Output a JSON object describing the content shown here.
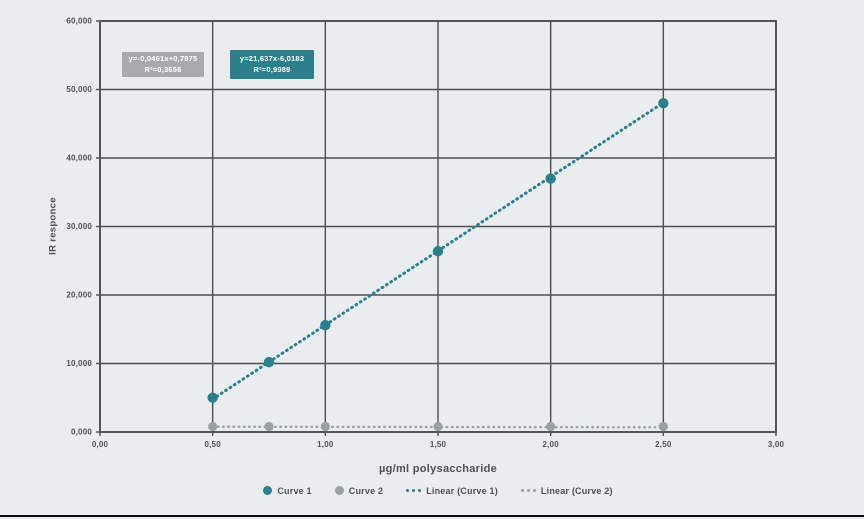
{
  "colors": {
    "background": "#e9edf0",
    "grid": "#4b4f51",
    "text": "#4e5254",
    "teal": "#2e7f8c",
    "gray": "#9aa0a3",
    "bottom_rule": "#0c0c0c"
  },
  "chart_data": {
    "type": "scatter",
    "title": "",
    "xlabel": "µg/ml polysaccharide",
    "ylabel": "IR responce",
    "xlim": [
      0,
      3
    ],
    "ylim": [
      0,
      60000
    ],
    "grid": true,
    "legend_position": "bottom",
    "x_ticks": [
      "0,00",
      "0,50",
      "1,00",
      "1,50",
      "2,00",
      "2,50",
      "3,00"
    ],
    "y_ticks": [
      "0,000",
      "10,000",
      "20,000",
      "30,000",
      "40,000",
      "50,000",
      "60,000"
    ],
    "series": [
      {
        "name": "Curve 1",
        "color": "#2e7f8c",
        "marker": "circle",
        "x": [
          0.5,
          0.75,
          1.0,
          1.5,
          2.0,
          2.5
        ],
        "y": [
          5000,
          10200,
          15600,
          26400,
          37000,
          48000
        ]
      },
      {
        "name": "Curve 2",
        "color": "#9aa0a3",
        "marker": "circle",
        "x": [
          0.5,
          0.75,
          1.0,
          1.5,
          2.0,
          2.5
        ],
        "y": [
          800,
          800,
          800,
          800,
          800,
          800
        ]
      }
    ],
    "trendlines": [
      {
        "name": "Linear (Curve 1)",
        "color": "#2e7f8c",
        "box_bg": "#2e7f8c",
        "style": "dotted",
        "equation": "y=21,637x-6,0183",
        "r2": "R²=0,9989",
        "x_start": 0.5,
        "y_start": 4800,
        "x_end": 2.5,
        "y_end": 48074
      },
      {
        "name": "Linear (Curve 2)",
        "color": "#9aa0a3",
        "box_bg": "#a7abad",
        "style": "dotted",
        "equation": "y=-0,0461x+0,7875",
        "r2": "R²=0,3656",
        "x_start": 0.5,
        "y_start": 770,
        "x_end": 2.5,
        "y_end": 680
      }
    ]
  },
  "legend": {
    "items": [
      {
        "label": "Curve 1",
        "icon": "dot",
        "color": "#2e7f8c"
      },
      {
        "label": "Curve 2",
        "icon": "dot",
        "color": "#9aa0a3"
      },
      {
        "label": "Linear (Curve 1)",
        "icon": "dotted-line",
        "color": "#2e7f8c"
      },
      {
        "label": "Linear (Curve 2)",
        "icon": "dotted-line",
        "color": "#9aa0a3"
      }
    ]
  }
}
